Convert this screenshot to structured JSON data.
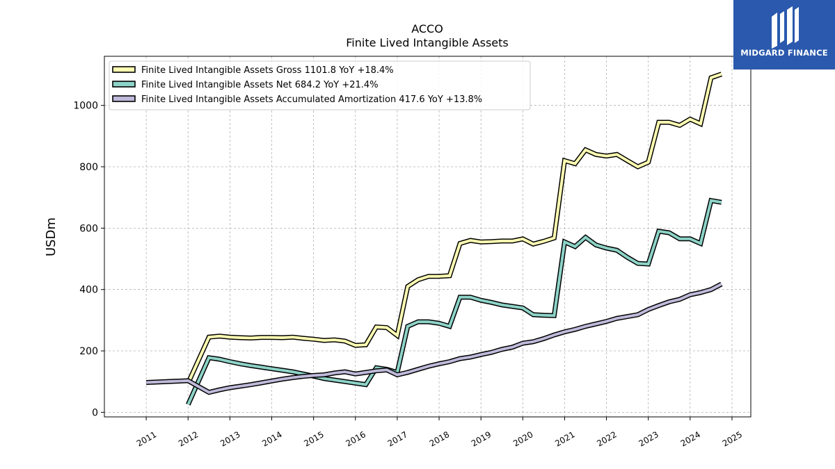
{
  "chart_data": {
    "type": "line",
    "title": "ACCO",
    "subtitle": "Finite Lived Intangible Assets",
    "ylabel": "USDm",
    "xlabel": "",
    "ylim": [
      -15,
      1160
    ],
    "xlim": [
      2010.0,
      2025.45
    ],
    "yticks": [
      0,
      200,
      400,
      600,
      800,
      1000
    ],
    "xticks": [
      "2011",
      "2012",
      "2013",
      "2014",
      "2015",
      "2016",
      "2017",
      "2018",
      "2019",
      "2020",
      "2021",
      "2022",
      "2023",
      "2024",
      "2025"
    ],
    "grid": true,
    "legend_position": "top-left",
    "series": [
      {
        "name": "Finite Lived Intangible Assets Gross  1101.8 YoY +18.4%",
        "color": "#ffffb3",
        "x": [
          2012.0,
          2012.5,
          2012.75,
          2013.0,
          2013.25,
          2013.5,
          2013.75,
          2014.0,
          2014.25,
          2014.5,
          2014.75,
          2015.0,
          2015.25,
          2015.5,
          2015.75,
          2016.0,
          2016.25,
          2016.5,
          2016.75,
          2017.0,
          2017.25,
          2017.5,
          2017.75,
          2018.0,
          2018.25,
          2018.5,
          2018.75,
          2019.0,
          2019.25,
          2019.5,
          2019.75,
          2020.0,
          2020.25,
          2020.5,
          2020.75,
          2021.0,
          2021.25,
          2021.5,
          2021.75,
          2022.0,
          2022.25,
          2022.5,
          2022.75,
          2023.0,
          2023.25,
          2023.5,
          2023.75,
          2024.0,
          2024.25,
          2024.5,
          2024.75
        ],
        "values": [
          95,
          245,
          248,
          245,
          243,
          242,
          244,
          244,
          243,
          245,
          241,
          238,
          234,
          236,
          232,
          218,
          220,
          278,
          276,
          250,
          410,
          432,
          443,
          443,
          445,
          550,
          560,
          555,
          556,
          558,
          558,
          565,
          548,
          557,
          568,
          820,
          810,
          855,
          840,
          835,
          840,
          820,
          800,
          815,
          945,
          945,
          935,
          955,
          940,
          1090,
          1101.8
        ]
      },
      {
        "name": "Finite Lived Intangible Assets Net  684.2 YoY +21.4%",
        "color": "#8dd3c7",
        "x": [
          2012.0,
          2012.5,
          2012.75,
          2013.0,
          2013.25,
          2013.5,
          2013.75,
          2014.0,
          2014.25,
          2014.5,
          2014.75,
          2015.0,
          2015.25,
          2015.5,
          2015.75,
          2016.0,
          2016.25,
          2016.5,
          2016.75,
          2017.0,
          2017.25,
          2017.5,
          2017.75,
          2018.0,
          2018.25,
          2018.5,
          2018.75,
          2019.0,
          2019.25,
          2019.5,
          2019.75,
          2020.0,
          2020.25,
          2020.5,
          2020.75,
          2021.0,
          2021.25,
          2021.5,
          2021.75,
          2022.0,
          2022.25,
          2022.5,
          2022.75,
          2023.0,
          2023.25,
          2023.5,
          2023.75,
          2024.0,
          2024.25,
          2024.5,
          2024.75
        ],
        "values": [
          25,
          178,
          173,
          165,
          158,
          152,
          147,
          142,
          137,
          132,
          125,
          118,
          110,
          105,
          100,
          95,
          90,
          145,
          140,
          130,
          280,
          295,
          295,
          290,
          280,
          375,
          375,
          365,
          358,
          350,
          345,
          340,
          318,
          316,
          315,
          555,
          540,
          570,
          545,
          535,
          528,
          505,
          485,
          483,
          590,
          585,
          565,
          565,
          550,
          690,
          684.2
        ]
      },
      {
        "name": "Finite Lived Intangible Assets Accumulated Amortization  417.6 YoY +13.8%",
        "color": "#bebada",
        "x": [
          2011.0,
          2012.0,
          2012.5,
          2012.75,
          2013.0,
          2013.25,
          2013.5,
          2013.75,
          2014.0,
          2014.25,
          2014.5,
          2014.75,
          2015.0,
          2015.25,
          2015.5,
          2015.75,
          2016.0,
          2016.25,
          2016.5,
          2016.75,
          2017.0,
          2017.25,
          2017.5,
          2017.75,
          2018.0,
          2018.25,
          2018.5,
          2018.75,
          2019.0,
          2019.25,
          2019.5,
          2019.75,
          2020.0,
          2020.25,
          2020.5,
          2020.75,
          2021.0,
          2021.25,
          2021.5,
          2021.75,
          2022.0,
          2022.25,
          2022.5,
          2022.75,
          2023.0,
          2023.25,
          2023.5,
          2023.75,
          2024.0,
          2024.25,
          2024.5,
          2024.75
        ],
        "values": [
          97,
          103,
          65,
          73,
          80,
          85,
          90,
          96,
          102,
          108,
          113,
          117,
          120,
          122,
          128,
          132,
          125,
          130,
          135,
          138,
          122,
          130,
          140,
          150,
          158,
          165,
          175,
          180,
          188,
          195,
          205,
          212,
          225,
          230,
          240,
          252,
          262,
          270,
          280,
          288,
          296,
          306,
          312,
          318,
          335,
          348,
          360,
          368,
          383,
          390,
          400,
          417.6
        ]
      }
    ]
  },
  "logo": {
    "text": "MIDGARD FINANCE"
  }
}
